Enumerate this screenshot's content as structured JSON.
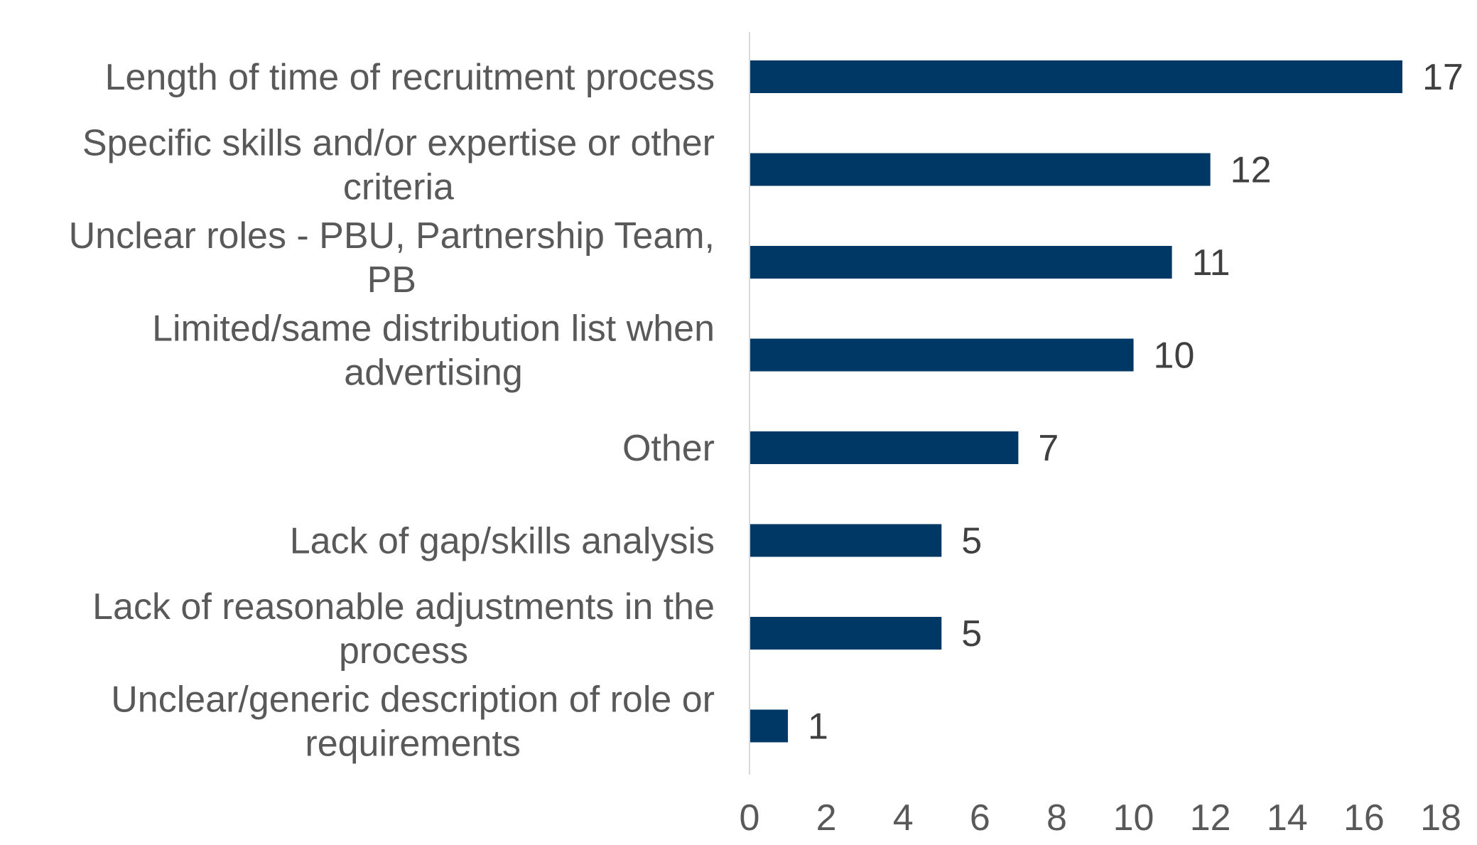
{
  "chart_data": {
    "type": "bar",
    "orientation": "horizontal",
    "categories": [
      [
        "Length of time of recruitment process"
      ],
      [
        "Specific skills and/or expertise or other",
        "criteria"
      ],
      [
        "Unclear roles - PBU, Partnership Team,",
        "PB"
      ],
      [
        "Limited/same distribution list when",
        "advertising"
      ],
      [
        "Other"
      ],
      [
        "Lack of gap/skills analysis"
      ],
      [
        "Lack of reasonable adjustments in the",
        "process"
      ],
      [
        "Unclear/generic description of role or",
        "requirements"
      ]
    ],
    "values": [
      17,
      12,
      11,
      10,
      7,
      5,
      5,
      1
    ],
    "xlim": [
      0,
      18
    ],
    "xticks": [
      0,
      2,
      4,
      6,
      8,
      10,
      12,
      14,
      16,
      18
    ],
    "title": "",
    "xlabel": "",
    "ylabel": "",
    "grid": false,
    "legend": "none",
    "bar_color": "#003865",
    "axis_color": "#d9d9d9"
  }
}
